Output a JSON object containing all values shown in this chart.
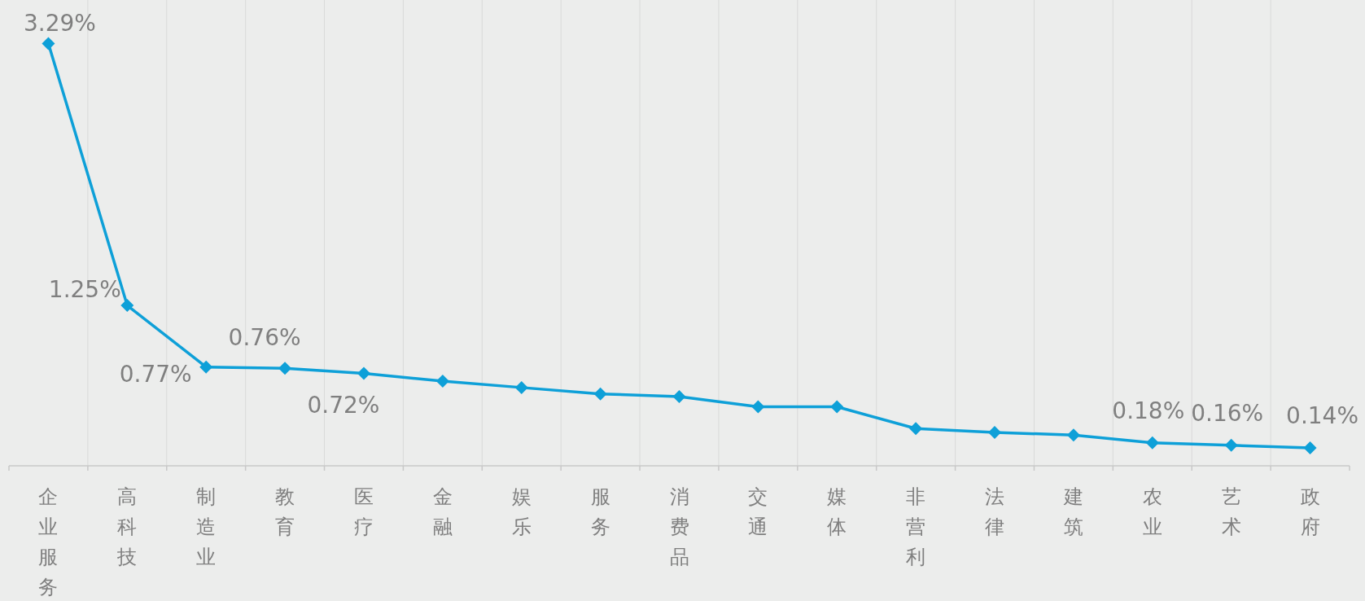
{
  "chart_data": {
    "type": "line",
    "categories": [
      "企业服务",
      "高科技",
      "制造业",
      "教育",
      "医疗",
      "金融",
      "娱乐",
      "服务",
      "消费品",
      "交通",
      "媒体",
      "非营利",
      "法律",
      "建筑",
      "农业",
      "艺术",
      "政府"
    ],
    "series": [
      {
        "color": "#0ea0d8",
        "values": [
          3.29,
          1.25,
          0.77,
          0.76,
          0.72,
          0.66,
          0.61,
          0.56,
          0.54,
          0.46,
          0.46,
          0.29,
          0.26,
          0.24,
          0.18,
          0.16,
          0.14
        ],
        "value_labels": [
          "3.29%",
          "1.25%",
          "0.77%",
          "0.76%",
          "0.72%",
          null,
          null,
          null,
          null,
          null,
          null,
          null,
          null,
          null,
          "0.18%",
          "0.16%",
          "0.14%"
        ]
      }
    ],
    "ylim": [
      0,
      3.63
    ],
    "grid": "x",
    "marker": "diamond",
    "line_style": "solid"
  }
}
